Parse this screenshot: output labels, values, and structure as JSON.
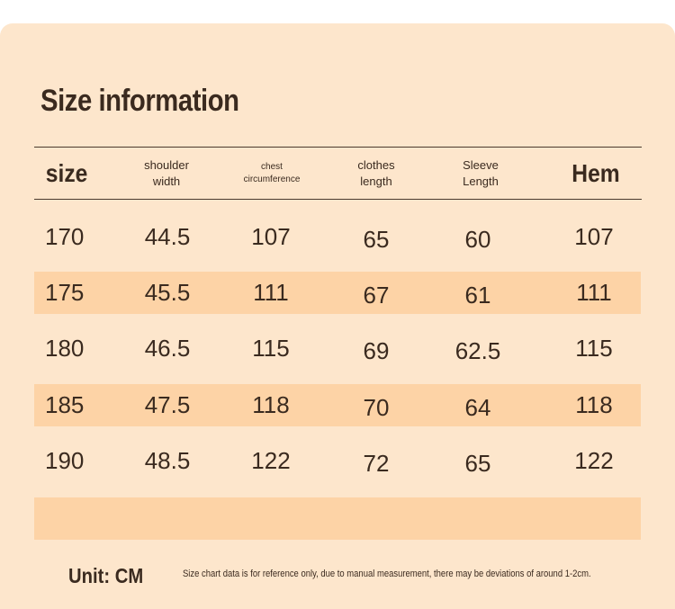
{
  "title": "Size information",
  "headers": {
    "size": "size",
    "shoulder_width": [
      "shoulder",
      "width"
    ],
    "chest_circumference": [
      "chest",
      "circumference"
    ],
    "clothes_length": [
      "clothes",
      "length"
    ],
    "sleeve_length": [
      "Sleeve",
      "Length"
    ],
    "hem": "Hem"
  },
  "rows": [
    {
      "size": "170",
      "shoulder": "44.5",
      "chest": "107",
      "length": "65",
      "sleeve": "60",
      "hem": "107"
    },
    {
      "size": "175",
      "shoulder": "45.5",
      "chest": "111",
      "length": "67",
      "sleeve": "61",
      "hem": "111"
    },
    {
      "size": "180",
      "shoulder": "46.5",
      "chest": "115",
      "length": "69",
      "sleeve": "62.5",
      "hem": "115"
    },
    {
      "size": "185",
      "shoulder": "47.5",
      "chest": "118",
      "length": "70",
      "sleeve": "64",
      "hem": "118"
    },
    {
      "size": "190",
      "shoulder": "48.5",
      "chest": "122",
      "length": "72",
      "sleeve": "65",
      "hem": "122"
    }
  ],
  "unit": "Unit: CM",
  "note": "Size chart data is for reference only, due to manual measurement, there may be deviations of around 1-2cm.",
  "colors": {
    "background": "#fde6cc",
    "shaded_row": "#fdd3a6",
    "text": "#3a2a1f"
  }
}
